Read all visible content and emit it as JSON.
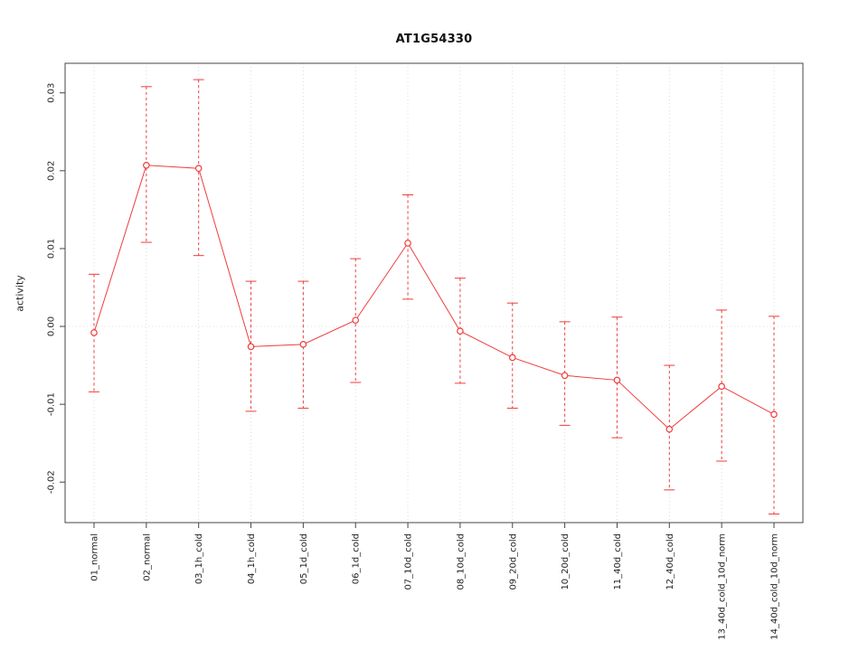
{
  "chart_data": {
    "type": "line",
    "title": "AT1G54330",
    "xlabel": "",
    "ylabel": "activity",
    "categories": [
      "01_normal",
      "02_normal",
      "03_1h_cold",
      "04_1h_cold",
      "05_1d_cold",
      "06_1d_cold",
      "07_10d_cold",
      "08_10d_cold",
      "09_20d_cold",
      "10_20d_cold",
      "11_40d_cold",
      "12_40d_cold",
      "13_40d_cold_10d_norm",
      "14_40d_cold_10d_norm"
    ],
    "series": [
      {
        "name": "activity",
        "values": [
          -0.0008,
          0.0207,
          0.0203,
          -0.0026,
          -0.0023,
          0.0008,
          0.0107,
          -0.0006,
          -0.004,
          -0.0063,
          -0.0069,
          -0.0132,
          -0.0077,
          -0.0113
        ],
        "err_low": [
          -0.0084,
          0.0108,
          0.0091,
          -0.0109,
          -0.0105,
          -0.0072,
          0.0035,
          -0.0073,
          -0.0105,
          -0.0127,
          -0.0143,
          -0.021,
          -0.0173,
          -0.0241
        ],
        "err_high": [
          0.0067,
          0.0308,
          0.0317,
          0.0058,
          0.0058,
          0.0087,
          0.0169,
          0.0062,
          0.003,
          0.0006,
          0.0012,
          -0.005,
          0.0021,
          0.0013
        ]
      }
    ],
    "ylim": [
      -0.0252,
      0.0338
    ],
    "yticks": [
      -0.02,
      -0.01,
      0,
      0.01,
      0.02,
      0.03
    ],
    "ytick_labels": [
      "-0.02",
      "-0.01",
      "0.00",
      "0.01",
      "0.02",
      "0.03"
    ],
    "grid": true,
    "zero_line": true,
    "legend": "none",
    "colors": {
      "series": "#f03c3c",
      "grid": "#dcdcdc",
      "zero_line": "#e3e3e3",
      "box": "#444444",
      "axis_text": "#222222"
    }
  }
}
